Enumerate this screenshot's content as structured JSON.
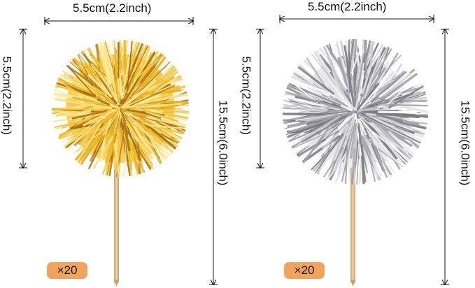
{
  "products": [
    {
      "finish": "gold",
      "dim_width": "5.5cm(2.2inch)",
      "dim_ball_height": "5.5cm(2.2inch)",
      "dim_total_height": "15.5cm(6.0inch)",
      "quantity": "×20"
    },
    {
      "finish": "silver",
      "dim_width": "5.5cm(2.2inch)",
      "dim_ball_height": "5.5cm(2.2inch)",
      "dim_total_height": "15.5cm(6.0inch)",
      "quantity": "×20"
    }
  ],
  "colors": {
    "gold_light": "#fbe27a",
    "gold_mid": "#e8b224",
    "gold_dark": "#a9700f",
    "silver_light": "#ffffff",
    "silver_mid": "#c9c9cf",
    "silver_dark": "#7a7a80",
    "stick": "#e7c79a",
    "stick_edge": "#c9a06a",
    "badge": "#f2a35c",
    "dimension_line": "#111111"
  }
}
